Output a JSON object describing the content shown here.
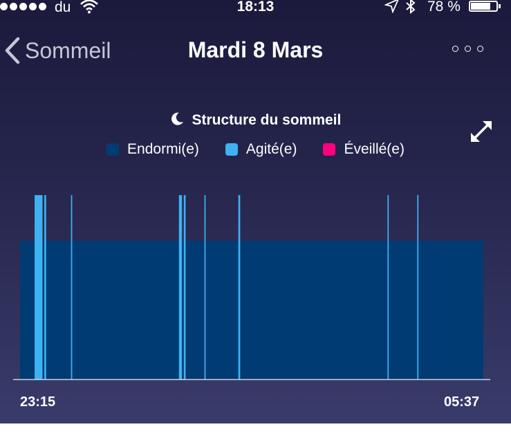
{
  "status_bar": {
    "carrier": "du",
    "time": "18:13",
    "battery_percent": "78 %",
    "battery_level": 0.78
  },
  "nav": {
    "back_label": "Sommeil",
    "title": "Mardi 8 Mars"
  },
  "chart_data": {
    "type": "bar",
    "title": "Structure du sommeil",
    "legend": [
      {
        "name": "Endormi(e)",
        "color": "#003b73"
      },
      {
        "name": "Agité(e)",
        "color": "#3fb2f2"
      },
      {
        "name": "Éveillé(e)",
        "color": "#ff0080"
      }
    ],
    "x_start": "23:15",
    "x_end": "05:37",
    "x_range_minutes": [
      0,
      382
    ],
    "asleep_segment_minutes": [
      0,
      382
    ],
    "restless_segments_minutes": [
      [
        12.0,
        18.5
      ],
      [
        20.0,
        21.5
      ],
      [
        42.0,
        43.0
      ],
      [
        131.0,
        133.5
      ],
      [
        135.0,
        136.5
      ],
      [
        152.0,
        153.0
      ],
      [
        180.0,
        181.5
      ],
      [
        303.0,
        304.0
      ],
      [
        327.5,
        328.5
      ]
    ],
    "awake_segments_minutes": [],
    "x_tick_labels": [
      "23:15",
      "05:37"
    ],
    "grid": false,
    "legend_position": "top"
  }
}
